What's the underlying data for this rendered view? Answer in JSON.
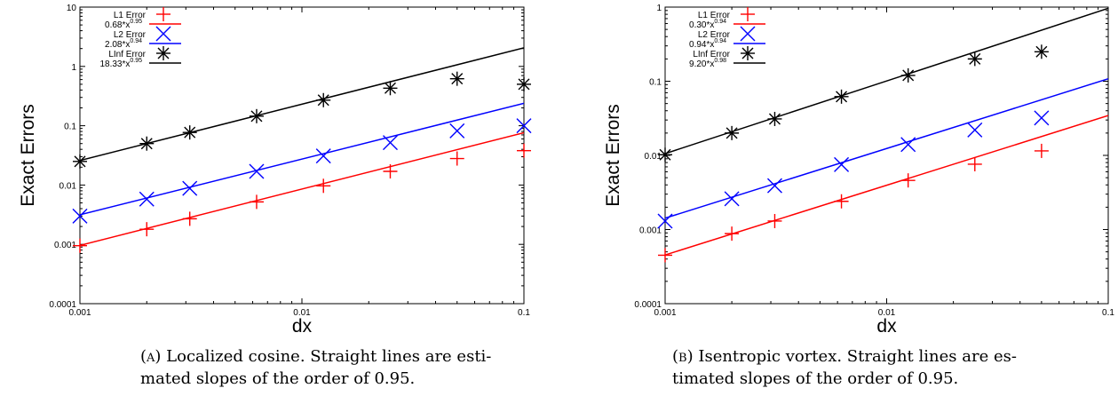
{
  "chart_data": [
    {
      "type": "scatter",
      "xlabel": "dx",
      "ylabel": "Exact Errors",
      "xscale": "log",
      "yscale": "log",
      "xlim": [
        0.001,
        0.1
      ],
      "ylim": [
        0.0001,
        10
      ],
      "x_ticks": [
        "0.001",
        "0.01",
        "0.1"
      ],
      "y_ticks": [
        "0.0001",
        "0.001",
        "0.01",
        "0.1",
        "1",
        "10"
      ],
      "legend_position": "top-left",
      "grid": false,
      "x": [
        0.001,
        0.002,
        0.003125,
        0.00625,
        0.0125,
        0.025,
        0.05,
        0.1
      ],
      "series": [
        {
          "name": "L1 Error",
          "marker": "plus",
          "color": "#ff0000",
          "values": [
            0.00095,
            0.0018,
            0.0027,
            0.0052,
            0.0097,
            0.017,
            0.028,
            0.038
          ]
        },
        {
          "name": "L2 Error",
          "marker": "x",
          "color": "#0000ff",
          "values": [
            0.003,
            0.0058,
            0.0088,
            0.017,
            0.031,
            0.052,
            0.082,
            0.1
          ]
        },
        {
          "name": "LInf Error",
          "marker": "asterisk",
          "color": "#000000",
          "values": [
            0.025,
            0.05,
            0.077,
            0.145,
            0.27,
            0.43,
            0.62,
            0.5
          ]
        }
      ],
      "fits": [
        {
          "name": "0.68*x",
          "exp_label": "0.95",
          "coef": 0.68,
          "exp": 0.95,
          "color": "#ff0000"
        },
        {
          "name": "2.08*x",
          "exp_label": "0.94",
          "coef": 2.08,
          "exp": 0.94,
          "color": "#0000ff"
        },
        {
          "name": "18.33*x",
          "exp_label": "0.95",
          "coef": 18.33,
          "exp": 0.95,
          "color": "#000000"
        }
      ]
    },
    {
      "type": "scatter",
      "xlabel": "dx",
      "ylabel": "Exact Errors",
      "xscale": "log",
      "yscale": "log",
      "xlim": [
        0.001,
        0.1
      ],
      "ylim": [
        0.0001,
        1
      ],
      "x_ticks": [
        "0.001",
        "0.01",
        "0.1"
      ],
      "y_ticks": [
        "0.0001",
        "0.001",
        "0.01",
        "0.1",
        "1"
      ],
      "legend_position": "top-left",
      "grid": false,
      "x": [
        0.001,
        0.002,
        0.003125,
        0.00625,
        0.0125,
        0.025,
        0.05
      ],
      "series": [
        {
          "name": "L1 Error",
          "marker": "plus",
          "color": "#ff0000",
          "values": [
            0.00045,
            0.00088,
            0.0013,
            0.0024,
            0.0046,
            0.0076,
            0.0115
          ]
        },
        {
          "name": "L2 Error",
          "marker": "x",
          "color": "#0000ff",
          "values": [
            0.0013,
            0.0026,
            0.0039,
            0.0075,
            0.014,
            0.022,
            0.032
          ]
        },
        {
          "name": "LInf Error",
          "marker": "asterisk",
          "color": "#000000",
          "values": [
            0.0102,
            0.02,
            0.031,
            0.062,
            0.12,
            0.2,
            0.25
          ]
        }
      ],
      "fits": [
        {
          "name": "0.30*x",
          "exp_label": "0.94",
          "coef": 0.3,
          "exp": 0.94,
          "color": "#ff0000"
        },
        {
          "name": "0.94*x",
          "exp_label": "0.94",
          "coef": 0.94,
          "exp": 0.94,
          "color": "#0000ff"
        },
        {
          "name": "9.20*x",
          "exp_label": "0.98",
          "coef": 9.2,
          "exp": 0.98,
          "color": "#000000"
        }
      ]
    }
  ],
  "captions": [
    {
      "label": "(a)",
      "line1": "Localized cosine. Straight lines are esti-",
      "line2": "mated slopes of the order of 0.95."
    },
    {
      "label": "(b)",
      "line1": "Isentropic vortex. Straight lines are es-",
      "line2": "timated slopes of the order of 0.95."
    }
  ]
}
